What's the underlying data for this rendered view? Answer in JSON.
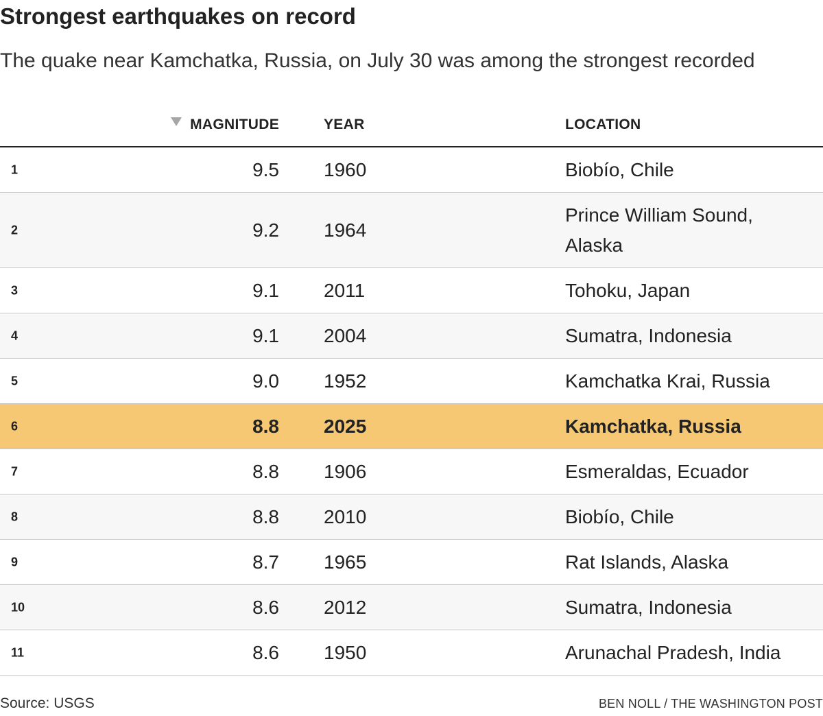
{
  "chart_data": {
    "type": "table",
    "title": "Strongest earthquakes on record",
    "subtitle": "The quake near Kamchatka, Russia, on July 30 was among the strongest recorded",
    "columns": [
      "",
      "MAGNITUDE",
      "YEAR",
      "LOCATION"
    ],
    "sorted_by": "MAGNITUDE",
    "sort_direction": "descending",
    "highlight_rank": 6,
    "highlight_color": "#f7c873",
    "rows": [
      {
        "rank": "1",
        "magnitude": "9.5",
        "year": "1960",
        "location": "Biobío, Chile"
      },
      {
        "rank": "2",
        "magnitude": "9.2",
        "year": "1964",
        "location": "Prince William Sound, Alaska"
      },
      {
        "rank": "3",
        "magnitude": "9.1",
        "year": "2011",
        "location": "Tohoku, Japan"
      },
      {
        "rank": "4",
        "magnitude": "9.1",
        "year": "2004",
        "location": "Sumatra, Indonesia"
      },
      {
        "rank": "5",
        "magnitude": "9.0",
        "year": "1952",
        "location": "Kamchatka Krai, Russia"
      },
      {
        "rank": "6",
        "magnitude": "8.8",
        "year": "2025",
        "location": "Kamchatka, Russia"
      },
      {
        "rank": "7",
        "magnitude": "8.8",
        "year": "1906",
        "location": "Esmeraldas, Ecuador"
      },
      {
        "rank": "8",
        "magnitude": "8.8",
        "year": "2010",
        "location": "Biobío, Chile"
      },
      {
        "rank": "9",
        "magnitude": "8.7",
        "year": "1965",
        "location": "Rat Islands, Alaska"
      },
      {
        "rank": "10",
        "magnitude": "8.6",
        "year": "2012",
        "location": "Sumatra, Indonesia"
      },
      {
        "rank": "11",
        "magnitude": "8.6",
        "year": "1950",
        "location": "Arunachal Pradesh, India"
      }
    ],
    "source": "Source: USGS",
    "credit": "BEN NOLL / THE WASHINGTON POST"
  }
}
